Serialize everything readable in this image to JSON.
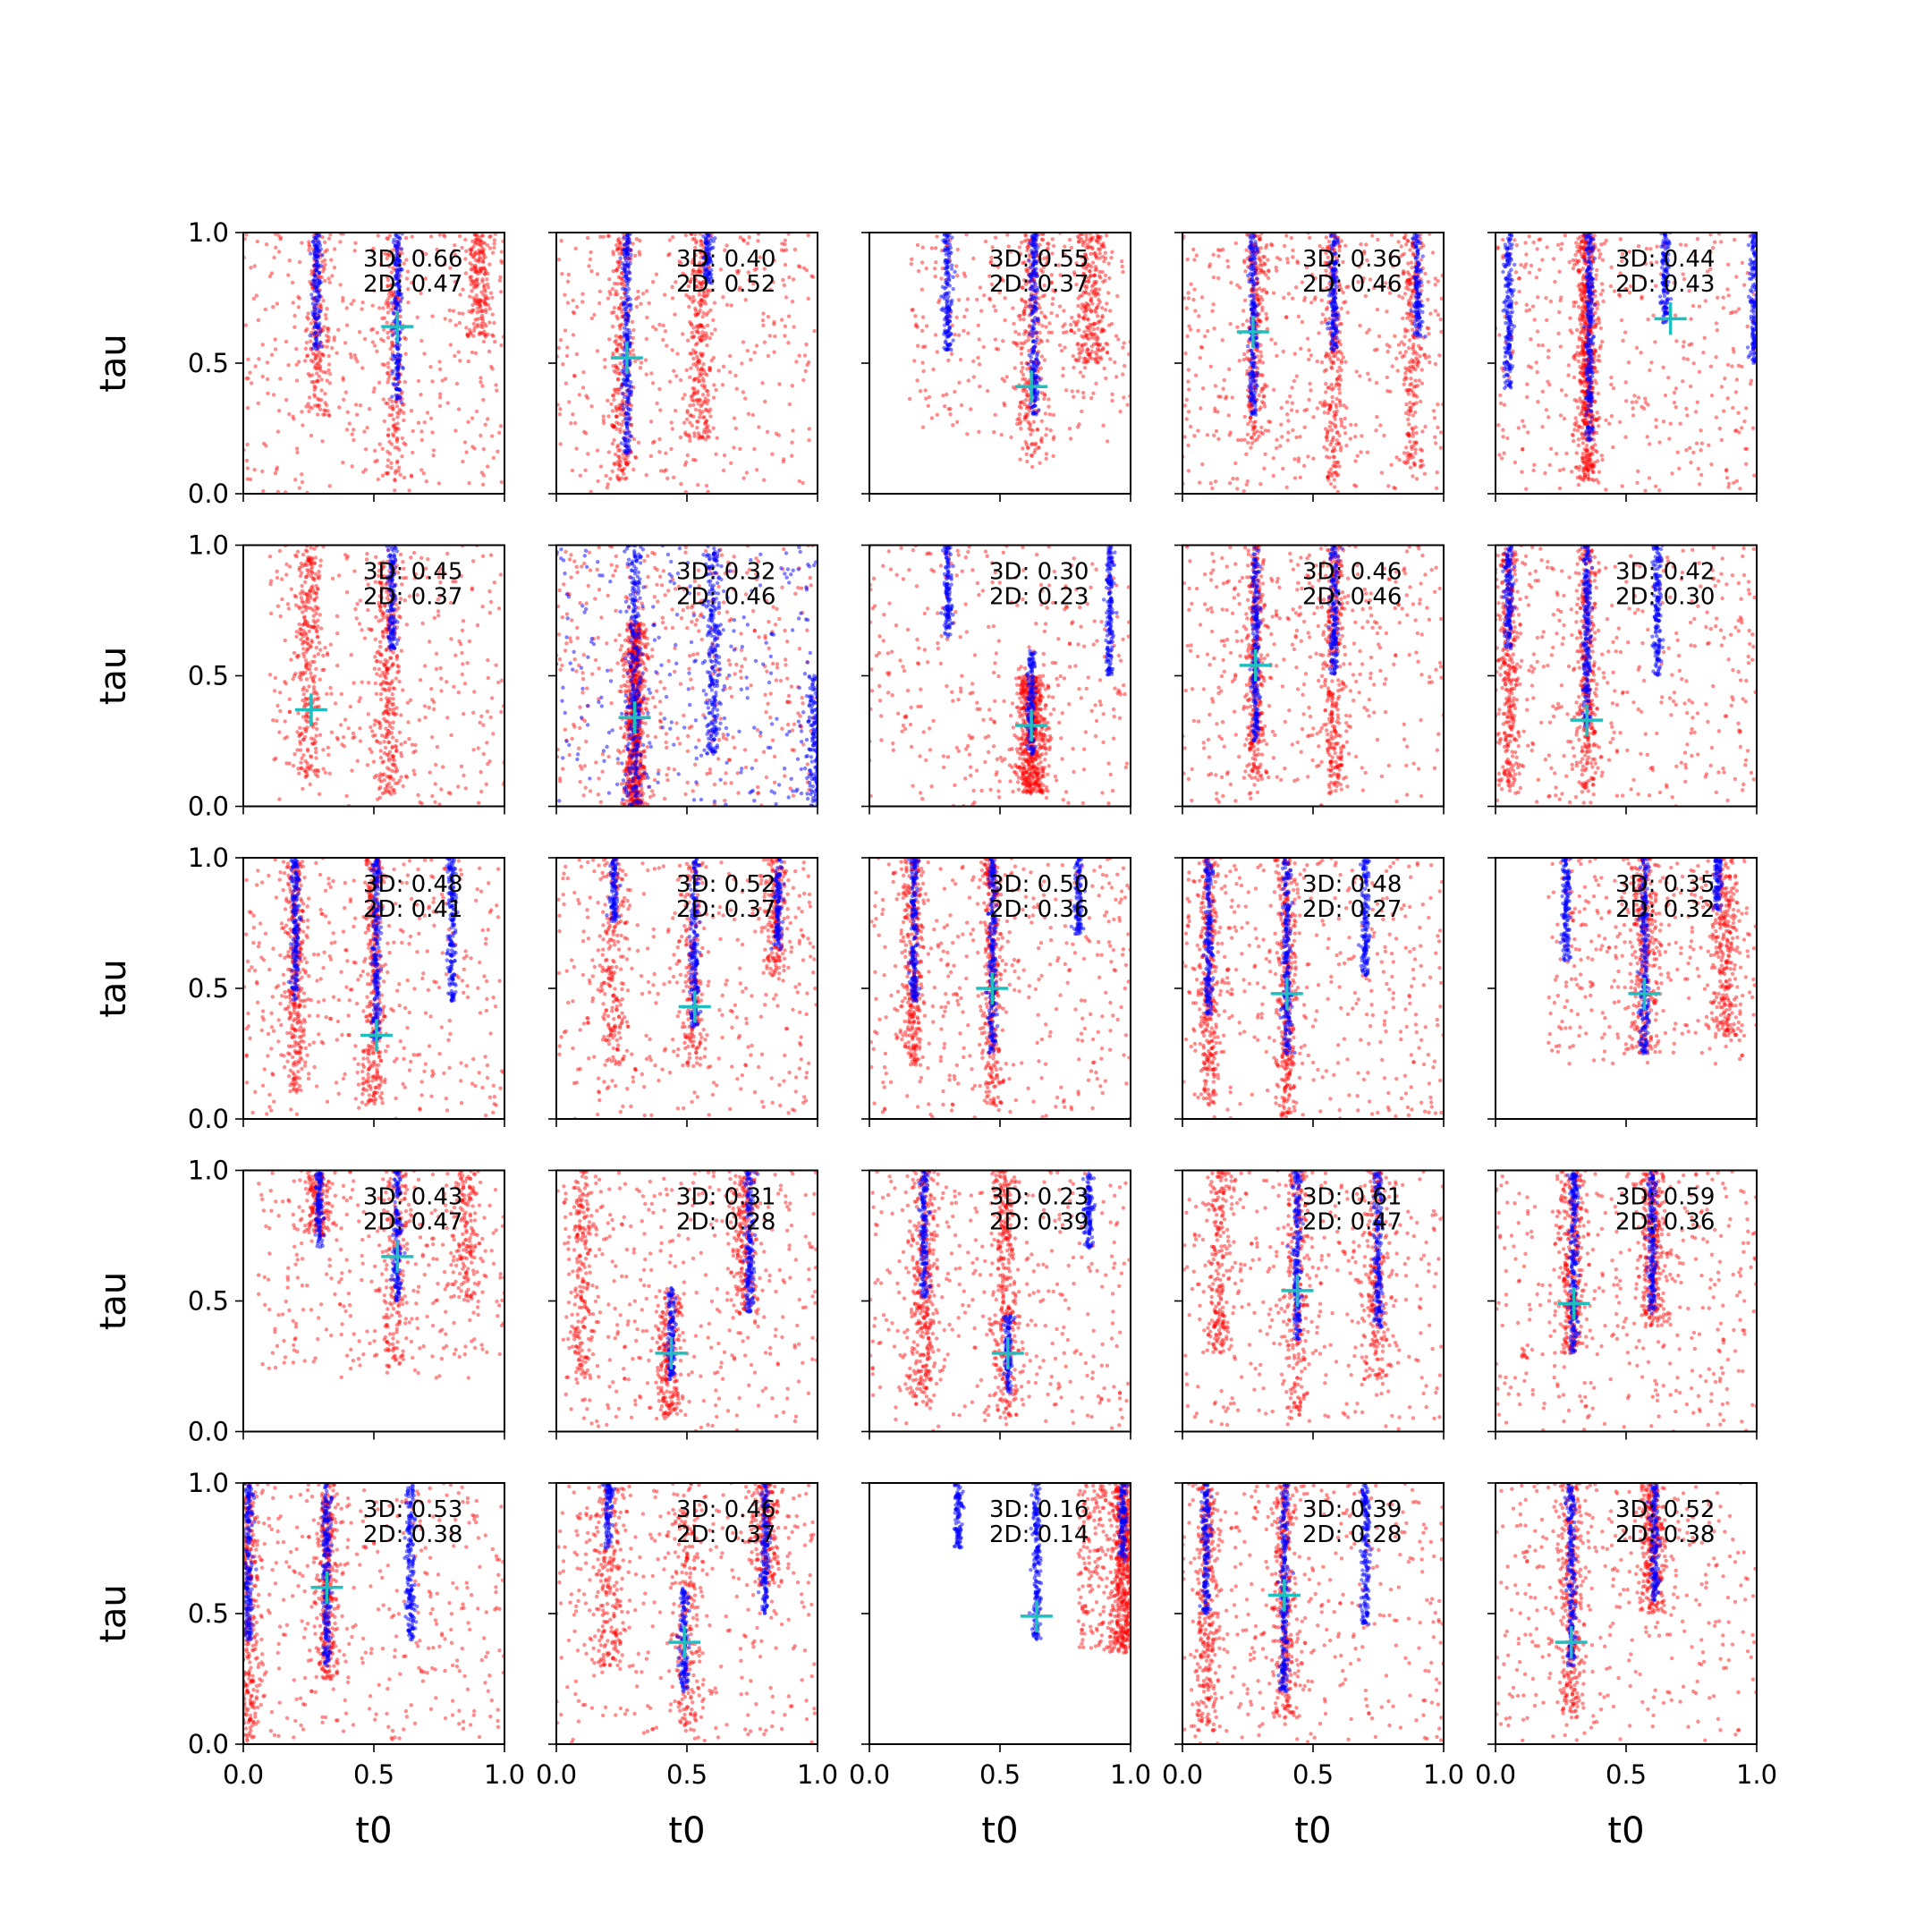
{
  "chart_data": {
    "type": "scatter",
    "layout": {
      "rows": 5,
      "cols": 5
    },
    "xlabel": "t0",
    "ylabel": "tau",
    "xlim": [
      0,
      1
    ],
    "ylim": [
      0,
      1
    ],
    "xticks": [
      "0.0",
      "0.5",
      "1.0"
    ],
    "yticks": [
      "0.0",
      "0.5",
      "1.0"
    ],
    "colors": {
      "red_series": "#ff0000",
      "blue_series": "#0000ff",
      "marker": "#1fbfbf"
    },
    "panels": [
      {
        "score_3d": "3D: 0.66",
        "score_2d": "2D: 0.47",
        "marker": [
          0.59,
          0.64
        ],
        "blue_bands": [
          [
            0.28,
            0.55,
            1.0
          ],
          [
            0.59,
            0.35,
            1.0
          ]
        ],
        "red_bands": [
          [
            0.28,
            0.3,
            1.0
          ],
          [
            0.58,
            0.05,
            1.0
          ],
          [
            0.9,
            0.6,
            1.0
          ]
        ],
        "red_diffuse": [
          0.0,
          1.0,
          0.0,
          1.0
        ],
        "red_count": 900,
        "red_spread": 0.025,
        "blue_spread": 0.008,
        "blue_extra": 0
      },
      {
        "score_3d": "3D: 0.40",
        "score_2d": "2D: 0.52",
        "marker": [
          0.27,
          0.52
        ],
        "blue_bands": [
          [
            0.27,
            0.15,
            1.0
          ],
          [
            0.58,
            0.8,
            1.0
          ]
        ],
        "red_bands": [
          [
            0.25,
            0.05,
            1.0
          ],
          [
            0.55,
            0.2,
            1.0
          ]
        ],
        "red_diffuse": [
          0.0,
          1.0,
          0.0,
          1.0
        ],
        "red_count": 850,
        "red_spread": 0.025,
        "blue_spread": 0.008,
        "blue_extra": 0
      },
      {
        "score_3d": "3D: 0.55",
        "score_2d": "2D: 0.37",
        "marker": [
          0.62,
          0.41
        ],
        "blue_bands": [
          [
            0.3,
            0.55,
            1.0
          ],
          [
            0.63,
            0.3,
            1.0
          ]
        ],
        "red_bands": [
          [
            0.62,
            0.1,
            1.0
          ],
          [
            0.85,
            0.5,
            1.0
          ]
        ],
        "red_diffuse": [
          0.15,
          1.0,
          0.2,
          1.0
        ],
        "red_count": 800,
        "red_spread": 0.03,
        "blue_spread": 0.008,
        "blue_extra": 0
      },
      {
        "score_3d": "3D: 0.36",
        "score_2d": "2D: 0.46",
        "marker": [
          0.27,
          0.62
        ],
        "blue_bands": [
          [
            0.27,
            0.3,
            1.0
          ],
          [
            0.58,
            0.55,
            1.0
          ],
          [
            0.9,
            0.6,
            1.0
          ]
        ],
        "red_bands": [
          [
            0.28,
            0.2,
            1.0
          ],
          [
            0.58,
            0.05,
            1.0
          ],
          [
            0.88,
            0.1,
            1.0
          ]
        ],
        "red_diffuse": [
          0.0,
          1.0,
          0.0,
          1.0
        ],
        "red_count": 1100,
        "red_spread": 0.02,
        "blue_spread": 0.008,
        "blue_extra": 0
      },
      {
        "score_3d": "3D: 0.44",
        "score_2d": "2D: 0.43",
        "marker": [
          0.67,
          0.67
        ],
        "blue_bands": [
          [
            0.05,
            0.4,
            1.0
          ],
          [
            0.36,
            0.2,
            1.0
          ],
          [
            0.65,
            0.65,
            1.0
          ],
          [
            0.99,
            0.5,
            1.0
          ]
        ],
        "red_bands": [
          [
            0.35,
            0.05,
            1.0
          ]
        ],
        "red_diffuse": [
          0.0,
          1.0,
          0.0,
          1.0
        ],
        "red_count": 1000,
        "red_spread": 0.02,
        "blue_spread": 0.008,
        "blue_extra": 0
      },
      {
        "score_3d": "3D: 0.45",
        "score_2d": "2D: 0.37",
        "marker": [
          0.26,
          0.37
        ],
        "blue_bands": [
          [
            0.57,
            0.6,
            1.0
          ]
        ],
        "red_bands": [
          [
            0.25,
            0.1,
            1.0
          ],
          [
            0.55,
            0.05,
            0.95
          ]
        ],
        "red_diffuse": [
          0.1,
          1.0,
          0.0,
          1.0
        ],
        "red_count": 900,
        "red_spread": 0.025,
        "blue_spread": 0.008,
        "blue_extra": 0
      },
      {
        "score_3d": "3D: 0.32",
        "score_2d": "2D: 0.46",
        "marker": [
          0.3,
          0.34
        ],
        "blue_bands": [
          [
            0.3,
            0.0,
            1.0
          ],
          [
            0.6,
            0.2,
            1.0
          ],
          [
            0.99,
            0.0,
            0.5
          ]
        ],
        "red_bands": [
          [
            0.3,
            0.0,
            0.7
          ]
        ],
        "red_diffuse": [
          0.0,
          1.0,
          0.0,
          1.0
        ],
        "red_count": 1100,
        "red_spread": 0.02,
        "blue_spread": 0.015,
        "blue_extra": 250
      },
      {
        "score_3d": "3D: 0.30",
        "score_2d": "2D: 0.23",
        "marker": [
          0.62,
          0.31
        ],
        "blue_bands": [
          [
            0.3,
            0.65,
            1.0
          ],
          [
            0.62,
            0.2,
            0.6
          ],
          [
            0.92,
            0.5,
            1.0
          ]
        ],
        "red_bands": [
          [
            0.62,
            0.05,
            0.5
          ]
        ],
        "red_diffuse": [
          0.0,
          1.0,
          0.0,
          1.0
        ],
        "red_count": 900,
        "red_spread": 0.03,
        "blue_spread": 0.008,
        "blue_extra": 0
      },
      {
        "score_3d": "3D: 0.46",
        "score_2d": "2D: 0.46",
        "marker": [
          0.28,
          0.54
        ],
        "blue_bands": [
          [
            0.28,
            0.25,
            1.0
          ],
          [
            0.58,
            0.5,
            1.0
          ]
        ],
        "red_bands": [
          [
            0.28,
            0.1,
            1.0
          ],
          [
            0.58,
            0.05,
            1.0
          ]
        ],
        "red_diffuse": [
          0.0,
          1.0,
          0.0,
          1.0
        ],
        "red_count": 1000,
        "red_spread": 0.02,
        "blue_spread": 0.008,
        "blue_extra": 0
      },
      {
        "score_3d": "3D: 0.42",
        "score_2d": "2D: 0.30",
        "marker": [
          0.35,
          0.33
        ],
        "blue_bands": [
          [
            0.05,
            0.6,
            1.0
          ],
          [
            0.35,
            0.3,
            1.0
          ],
          [
            0.62,
            0.5,
            1.0
          ]
        ],
        "red_bands": [
          [
            0.05,
            0.05,
            1.0
          ],
          [
            0.35,
            0.05,
            1.0
          ]
        ],
        "red_diffuse": [
          0.0,
          1.0,
          0.0,
          1.0
        ],
        "red_count": 1000,
        "red_spread": 0.02,
        "blue_spread": 0.008,
        "blue_extra": 0
      },
      {
        "score_3d": "3D: 0.48",
        "score_2d": "2D: 0.41",
        "marker": [
          0.51,
          0.32
        ],
        "blue_bands": [
          [
            0.2,
            0.45,
            1.0
          ],
          [
            0.51,
            0.3,
            1.0
          ],
          [
            0.8,
            0.45,
            1.0
          ]
        ],
        "red_bands": [
          [
            0.2,
            0.1,
            1.0
          ],
          [
            0.5,
            0.05,
            1.0
          ]
        ],
        "red_diffuse": [
          0.0,
          1.0,
          0.0,
          1.0
        ],
        "red_count": 1000,
        "red_spread": 0.02,
        "blue_spread": 0.008,
        "blue_extra": 0
      },
      {
        "score_3d": "3D: 0.52",
        "score_2d": "2D: 0.37",
        "marker": [
          0.53,
          0.43
        ],
        "blue_bands": [
          [
            0.22,
            0.75,
            1.0
          ],
          [
            0.53,
            0.35,
            1.0
          ],
          [
            0.85,
            0.65,
            1.0
          ]
        ],
        "red_bands": [
          [
            0.22,
            0.2,
            1.0
          ],
          [
            0.52,
            0.2,
            1.0
          ],
          [
            0.84,
            0.55,
            1.0
          ]
        ],
        "red_diffuse": [
          0.0,
          1.0,
          0.0,
          1.0
        ],
        "red_count": 900,
        "red_spread": 0.025,
        "blue_spread": 0.008,
        "blue_extra": 0
      },
      {
        "score_3d": "3D: 0.50",
        "score_2d": "2D: 0.36",
        "marker": [
          0.47,
          0.5
        ],
        "blue_bands": [
          [
            0.17,
            0.45,
            1.0
          ],
          [
            0.47,
            0.25,
            1.0
          ],
          [
            0.8,
            0.7,
            1.0
          ]
        ],
        "red_bands": [
          [
            0.17,
            0.2,
            1.0
          ],
          [
            0.47,
            0.05,
            1.0
          ]
        ],
        "red_diffuse": [
          0.0,
          1.0,
          0.0,
          1.0
        ],
        "red_count": 1000,
        "red_spread": 0.02,
        "blue_spread": 0.008,
        "blue_extra": 0
      },
      {
        "score_3d": "3D: 0.48",
        "score_2d": "2D: 0.27",
        "marker": [
          0.4,
          0.48
        ],
        "blue_bands": [
          [
            0.1,
            0.4,
            1.0
          ],
          [
            0.4,
            0.25,
            1.0
          ],
          [
            0.7,
            0.55,
            1.0
          ]
        ],
        "red_bands": [
          [
            0.1,
            0.05,
            1.0
          ],
          [
            0.4,
            0.0,
            1.0
          ]
        ],
        "red_diffuse": [
          0.0,
          1.0,
          0.0,
          1.0
        ],
        "red_count": 1000,
        "red_spread": 0.02,
        "blue_spread": 0.008,
        "blue_extra": 0
      },
      {
        "score_3d": "3D: 0.35",
        "score_2d": "2D: 0.32",
        "marker": [
          0.57,
          0.48
        ],
        "blue_bands": [
          [
            0.27,
            0.6,
            1.0
          ],
          [
            0.57,
            0.25,
            1.0
          ],
          [
            0.85,
            0.8,
            1.0
          ]
        ],
        "red_bands": [
          [
            0.57,
            0.25,
            1.0
          ],
          [
            0.88,
            0.3,
            1.0
          ]
        ],
        "red_diffuse": [
          0.2,
          1.0,
          0.2,
          1.0
        ],
        "red_count": 900,
        "red_spread": 0.03,
        "blue_spread": 0.008,
        "blue_extra": 0
      },
      {
        "score_3d": "3D: 0.43",
        "score_2d": "2D: 0.47",
        "marker": [
          0.59,
          0.67
        ],
        "blue_bands": [
          [
            0.29,
            0.7,
            1.0
          ],
          [
            0.59,
            0.5,
            1.0
          ]
        ],
        "red_bands": [
          [
            0.28,
            0.75,
            1.0
          ],
          [
            0.58,
            0.25,
            1.0
          ],
          [
            0.85,
            0.5,
            1.0
          ]
        ],
        "red_diffuse": [
          0.05,
          1.0,
          0.2,
          1.0
        ],
        "red_count": 800,
        "red_spread": 0.03,
        "blue_spread": 0.008,
        "blue_extra": 0
      },
      {
        "score_3d": "3D: 0.31",
        "score_2d": "2D: 0.28",
        "marker": [
          0.44,
          0.3
        ],
        "blue_bands": [
          [
            0.44,
            0.2,
            0.55
          ],
          [
            0.74,
            0.45,
            1.0
          ]
        ],
        "red_bands": [
          [
            0.1,
            0.2,
            1.0
          ],
          [
            0.43,
            0.05,
            0.55
          ],
          [
            0.72,
            0.45,
            1.0
          ]
        ],
        "red_diffuse": [
          0.0,
          1.0,
          0.0,
          1.0
        ],
        "red_count": 1000,
        "red_spread": 0.025,
        "blue_spread": 0.008,
        "blue_extra": 0
      },
      {
        "score_3d": "3D: 0.23",
        "score_2d": "2D: 0.39",
        "marker": [
          0.53,
          0.3
        ],
        "blue_bands": [
          [
            0.21,
            0.5,
            1.0
          ],
          [
            0.53,
            0.15,
            0.45
          ],
          [
            0.84,
            0.7,
            1.0
          ]
        ],
        "red_bands": [
          [
            0.21,
            0.1,
            1.0
          ],
          [
            0.52,
            0.05,
            1.0
          ]
        ],
        "red_diffuse": [
          0.0,
          1.0,
          0.0,
          1.0
        ],
        "red_count": 1000,
        "red_spread": 0.025,
        "blue_spread": 0.008,
        "blue_extra": 0
      },
      {
        "score_3d": "3D: 0.61",
        "score_2d": "2D: 0.47",
        "marker": [
          0.44,
          0.54
        ],
        "blue_bands": [
          [
            0.44,
            0.35,
            1.0
          ],
          [
            0.75,
            0.4,
            1.0
          ]
        ],
        "red_bands": [
          [
            0.14,
            0.3,
            1.0
          ],
          [
            0.44,
            0.05,
            1.0
          ],
          [
            0.74,
            0.2,
            1.0
          ]
        ],
        "red_diffuse": [
          0.0,
          1.0,
          0.0,
          1.0
        ],
        "red_count": 1000,
        "red_spread": 0.025,
        "blue_spread": 0.008,
        "blue_extra": 0
      },
      {
        "score_3d": "3D: 0.59",
        "score_2d": "2D: 0.36",
        "marker": [
          0.3,
          0.49
        ],
        "blue_bands": [
          [
            0.3,
            0.3,
            1.0
          ],
          [
            0.6,
            0.45,
            1.0
          ]
        ],
        "red_bands": [
          [
            0.29,
            0.3,
            1.0
          ],
          [
            0.6,
            0.4,
            1.0
          ]
        ],
        "red_diffuse": [
          0.0,
          1.0,
          0.0,
          1.0
        ],
        "red_count": 1000,
        "red_spread": 0.025,
        "blue_spread": 0.008,
        "blue_extra": 0
      },
      {
        "score_3d": "3D: 0.53",
        "score_2d": "2D: 0.38",
        "marker": [
          0.32,
          0.6
        ],
        "blue_bands": [
          [
            0.02,
            0.4,
            1.0
          ],
          [
            0.32,
            0.3,
            1.0
          ],
          [
            0.64,
            0.4,
            1.0
          ]
        ],
        "red_bands": [
          [
            0.02,
            0.0,
            1.0
          ],
          [
            0.32,
            0.25,
            1.0
          ]
        ],
        "red_diffuse": [
          0.0,
          1.0,
          0.0,
          1.0
        ],
        "red_count": 1000,
        "red_spread": 0.02,
        "blue_spread": 0.008,
        "blue_extra": 0
      },
      {
        "score_3d": "3D: 0.46",
        "score_2d": "2D: 0.37",
        "marker": [
          0.49,
          0.39
        ],
        "blue_bands": [
          [
            0.2,
            0.75,
            1.0
          ],
          [
            0.49,
            0.2,
            0.6
          ],
          [
            0.8,
            0.5,
            1.0
          ]
        ],
        "red_bands": [
          [
            0.2,
            0.3,
            1.0
          ],
          [
            0.5,
            0.05,
            0.9
          ],
          [
            0.8,
            0.6,
            1.0
          ]
        ],
        "red_diffuse": [
          0.0,
          1.0,
          0.0,
          1.0
        ],
        "red_count": 950,
        "red_spread": 0.03,
        "blue_spread": 0.008,
        "blue_extra": 0
      },
      {
        "score_3d": "3D: 0.16",
        "score_2d": "2D: 0.14",
        "marker": [
          0.64,
          0.49
        ],
        "blue_bands": [
          [
            0.34,
            0.75,
            1.0
          ],
          [
            0.64,
            0.4,
            1.0
          ],
          [
            0.97,
            0.7,
            1.0
          ]
        ],
        "red_bands": [
          [
            0.97,
            0.35,
            1.0
          ]
        ],
        "red_diffuse": [
          0.8,
          1.0,
          0.35,
          1.0
        ],
        "red_count": 700,
        "red_spread": 0.02,
        "blue_spread": 0.008,
        "blue_extra": 0
      },
      {
        "score_3d": "3D: 0.39",
        "score_2d": "2D: 0.28",
        "marker": [
          0.39,
          0.57
        ],
        "blue_bands": [
          [
            0.09,
            0.5,
            1.0
          ],
          [
            0.39,
            0.2,
            1.0
          ],
          [
            0.7,
            0.45,
            1.0
          ]
        ],
        "red_bands": [
          [
            0.09,
            0.05,
            1.0
          ],
          [
            0.39,
            0.1,
            1.0
          ]
        ],
        "red_diffuse": [
          0.0,
          1.0,
          0.0,
          1.0
        ],
        "red_count": 950,
        "red_spread": 0.025,
        "blue_spread": 0.008,
        "blue_extra": 0
      },
      {
        "score_3d": "3D: 0.52",
        "score_2d": "2D: 0.38",
        "marker": [
          0.29,
          0.39
        ],
        "blue_bands": [
          [
            0.29,
            0.3,
            1.0
          ],
          [
            0.61,
            0.55,
            1.0
          ]
        ],
        "red_bands": [
          [
            0.29,
            0.1,
            1.0
          ],
          [
            0.6,
            0.5,
            1.0
          ]
        ],
        "red_diffuse": [
          0.0,
          1.0,
          0.0,
          1.0
        ],
        "red_count": 950,
        "red_spread": 0.025,
        "blue_spread": 0.008,
        "blue_extra": 0
      }
    ]
  }
}
